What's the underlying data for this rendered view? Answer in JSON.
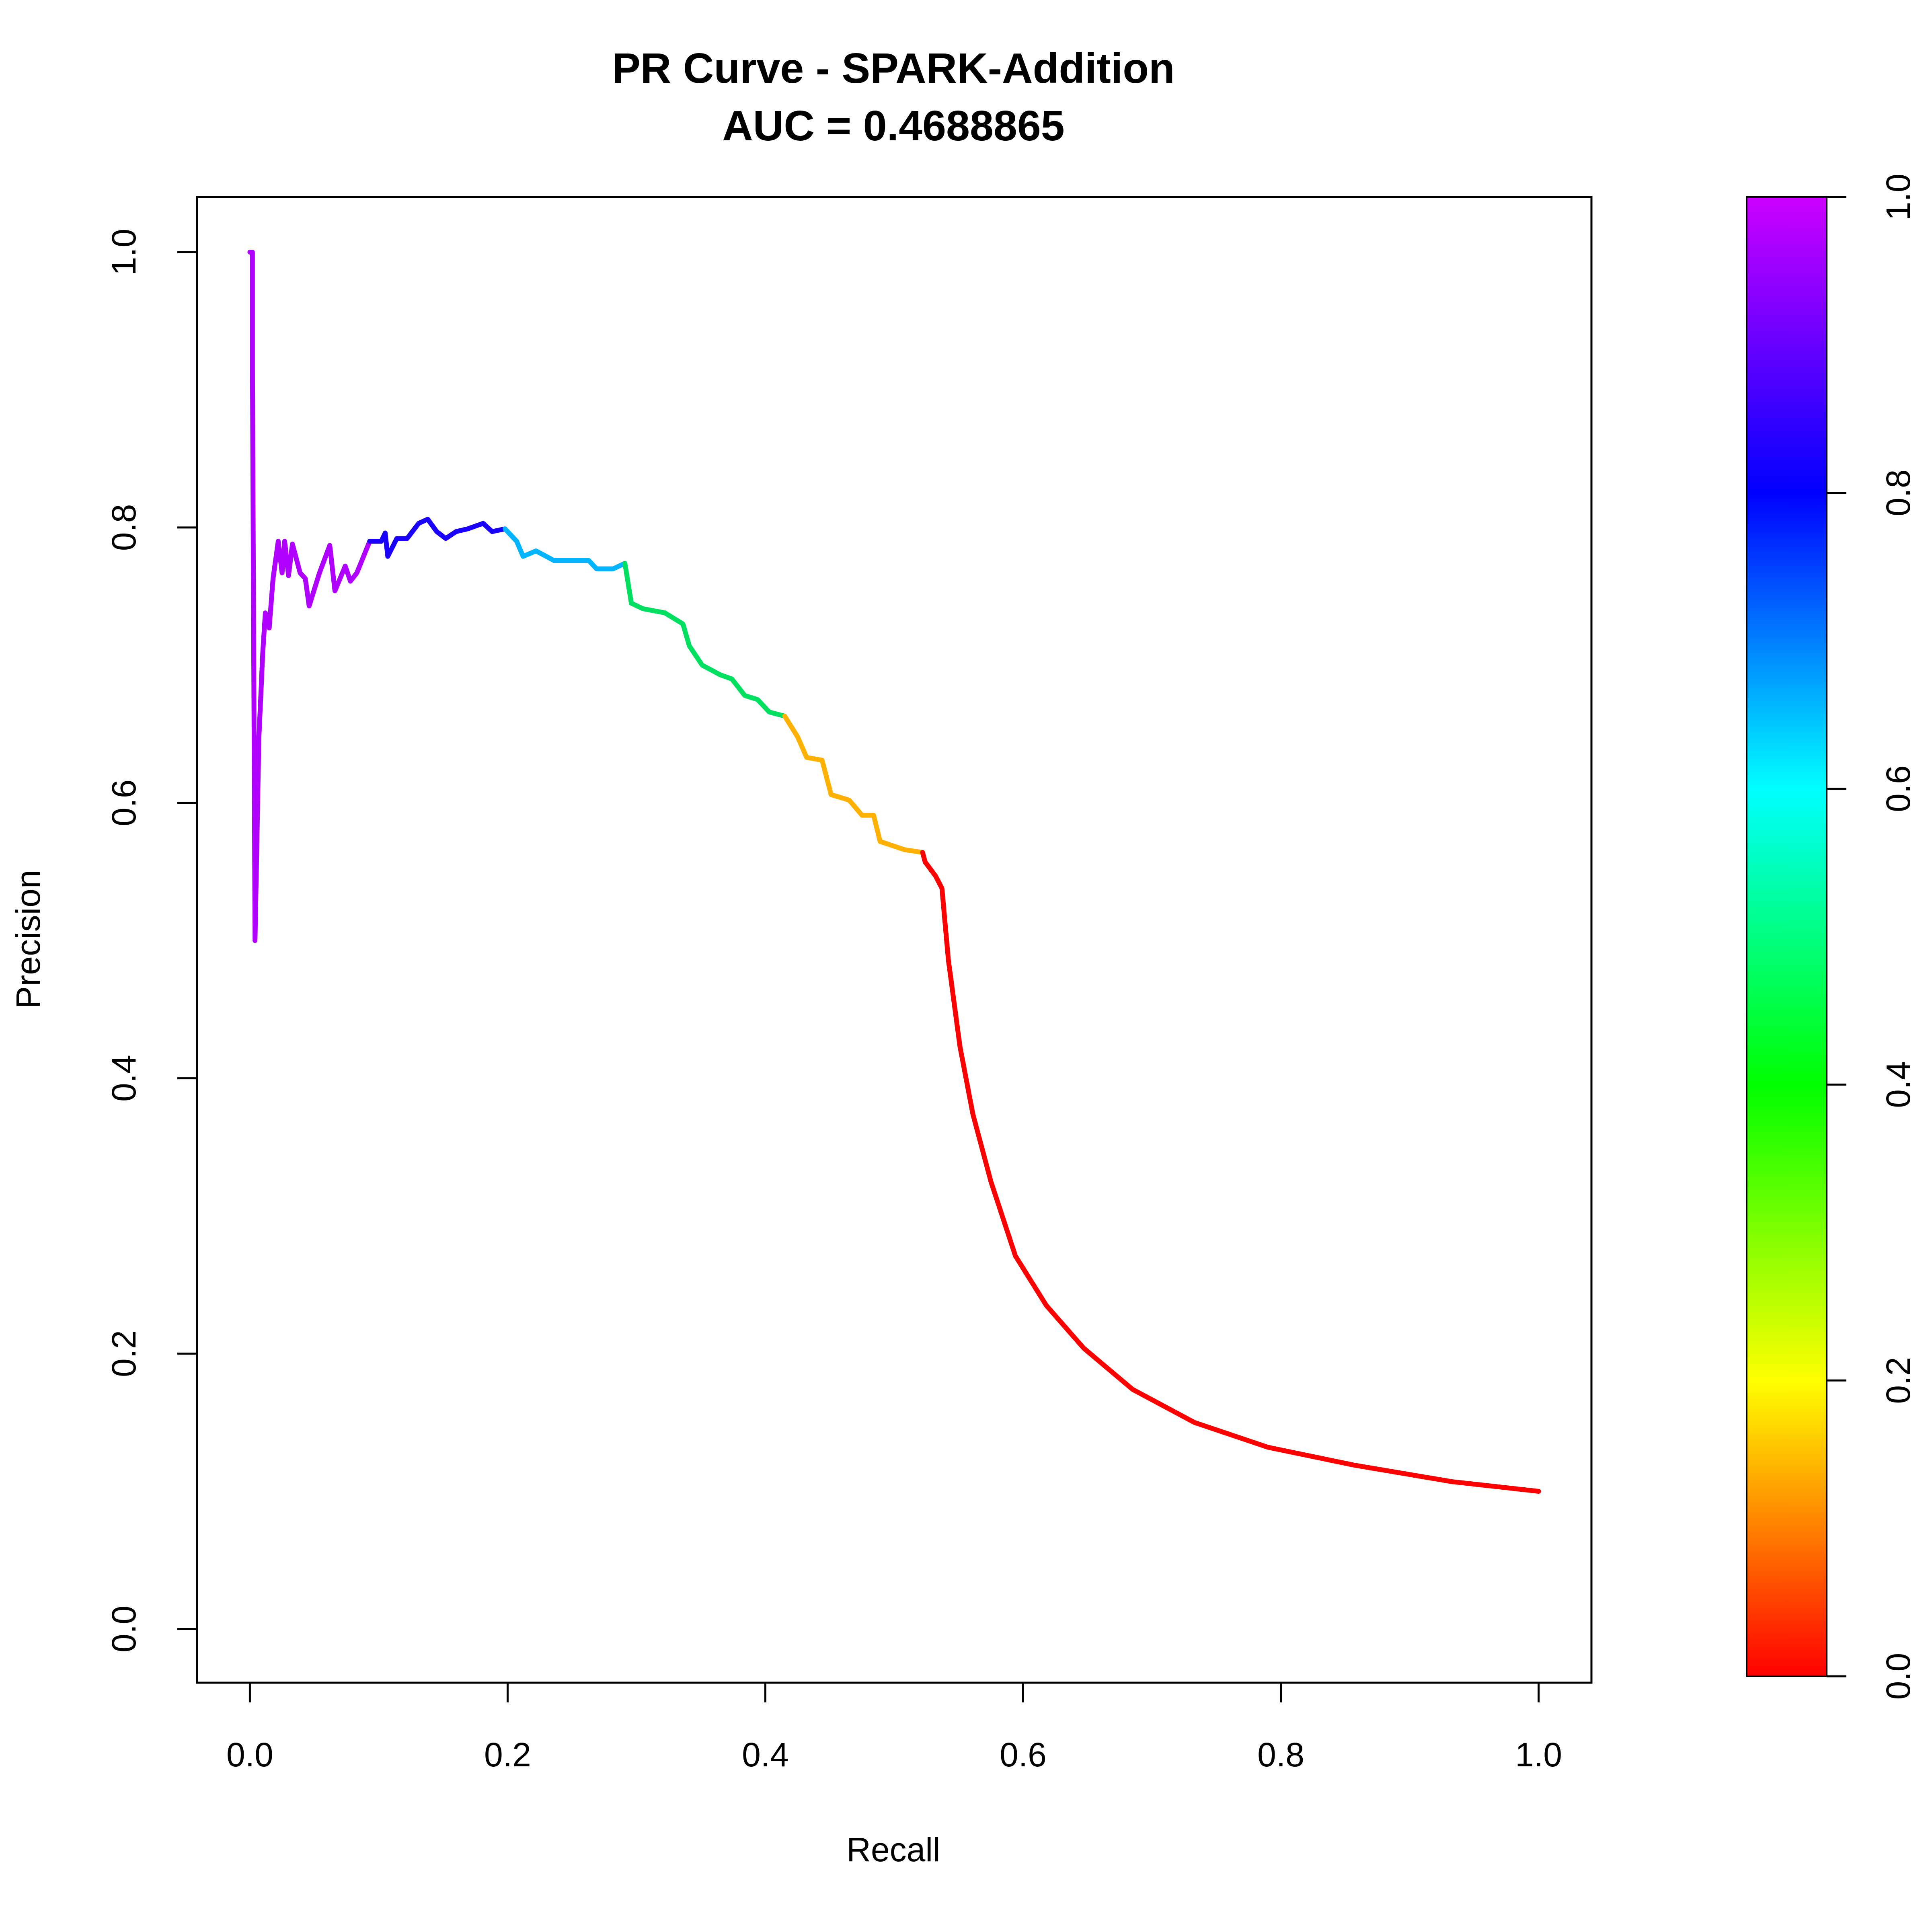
{
  "chart_data": {
    "type": "line",
    "title": "PR Curve - SPARK-Addition",
    "subtitle": "AUC = 0.4688865",
    "x_label": "Recall",
    "y_label": "Precision",
    "xlim": [
      -0.041,
      1.041
    ],
    "ylim": [
      -0.039,
      1.04
    ],
    "xticks": [
      {
        "value": 0,
        "label": "0.0"
      },
      0.2,
      0.4,
      0.6,
      0.8,
      {
        "value": 1,
        "label": "1.0"
      }
    ],
    "yticks": [
      {
        "value": 0,
        "label": "0.0"
      },
      0.2,
      0.4,
      0.6,
      0.8,
      {
        "value": 1,
        "label": "1.0"
      }
    ],
    "series": [
      {
        "color": "#b000ff",
        "x": [
          0,
          0.002,
          0.002,
          0.004,
          0.007,
          0.01,
          0.012,
          0.015,
          0.018,
          0.022,
          0.025,
          0.027,
          0.03,
          0.033,
          0.039,
          0.043,
          0.046,
          0.051,
          0.054,
          0.062,
          0.066,
          0.074,
          0.078,
          0.083,
          0.093
        ],
        "values": [
          1,
          1,
          0.915,
          0.5,
          0.647,
          0.709,
          0.738,
          0.727,
          0.763,
          0.79,
          0.767,
          0.79,
          0.765,
          0.788,
          0.767,
          0.763,
          0.743,
          0.758,
          0.767,
          0.787,
          0.754,
          0.772,
          0.761,
          0.767,
          0.79
        ]
      },
      {
        "color": "#1a00ff",
        "x": [
          0.102,
          0.105,
          0.107,
          0.114,
          0.122,
          0.131,
          0.138,
          0.145,
          0.152,
          0.16,
          0.169,
          0.181,
          0.188,
          0.198
        ],
        "values": [
          0.79,
          0.796,
          0.779,
          0.792,
          0.792,
          0.803,
          0.806,
          0.797,
          0.792,
          0.797,
          0.799,
          0.803,
          0.797,
          0.799
        ]
      },
      {
        "color": "#00b4ff",
        "x": [
          0.207,
          0.212,
          0.222,
          0.236,
          0.25,
          0.263,
          0.269,
          0.282,
          0.291
        ],
        "values": [
          0.79,
          0.779,
          0.783,
          0.776,
          0.776,
          0.776,
          0.77,
          0.77,
          0.774
        ]
      },
      {
        "color": "#00e060",
        "x": [
          0.296,
          0.305,
          0.322,
          0.336,
          0.341,
          0.351,
          0.365,
          0.374,
          0.384,
          0.394,
          0.403,
          0.415
        ],
        "values": [
          0.745,
          0.741,
          0.738,
          0.73,
          0.714,
          0.7,
          0.693,
          0.69,
          0.678,
          0.675,
          0.666,
          0.663
        ]
      },
      {
        "color": "#ffb000",
        "x": [
          0.425,
          0.432,
          0.444,
          0.451,
          0.465,
          0.475,
          0.484,
          0.489,
          0.508,
          0.522
        ],
        "values": [
          0.648,
          0.633,
          0.631,
          0.606,
          0.602,
          0.591,
          0.591,
          0.572,
          0.566,
          0.564
        ]
      },
      {
        "color": "#ff0000",
        "x": [
          0.524,
          0.532,
          0.537,
          0.542,
          0.551,
          0.561,
          0.575,
          0.594,
          0.618,
          0.647,
          0.685,
          0.733,
          0.79,
          0.857,
          0.933,
          1
        ],
        "values": [
          0.557,
          0.547,
          0.538,
          0.486,
          0.423,
          0.374,
          0.325,
          0.271,
          0.235,
          0.204,
          0.174,
          0.15,
          0.132,
          0.119,
          0.107,
          0.1
        ]
      }
    ],
    "colorbar": {
      "lim": [
        0,
        1
      ],
      "ticks": [
        {
          "value": 0,
          "label": "0.0"
        },
        0.2,
        0.4,
        0.6,
        0.8,
        {
          "value": 1,
          "label": "1.0"
        }
      ],
      "colors": [
        "#ff0000",
        "#ffff00",
        "#00ff00",
        "#00ffff",
        "#0000ff",
        "#cc00ff"
      ]
    }
  }
}
